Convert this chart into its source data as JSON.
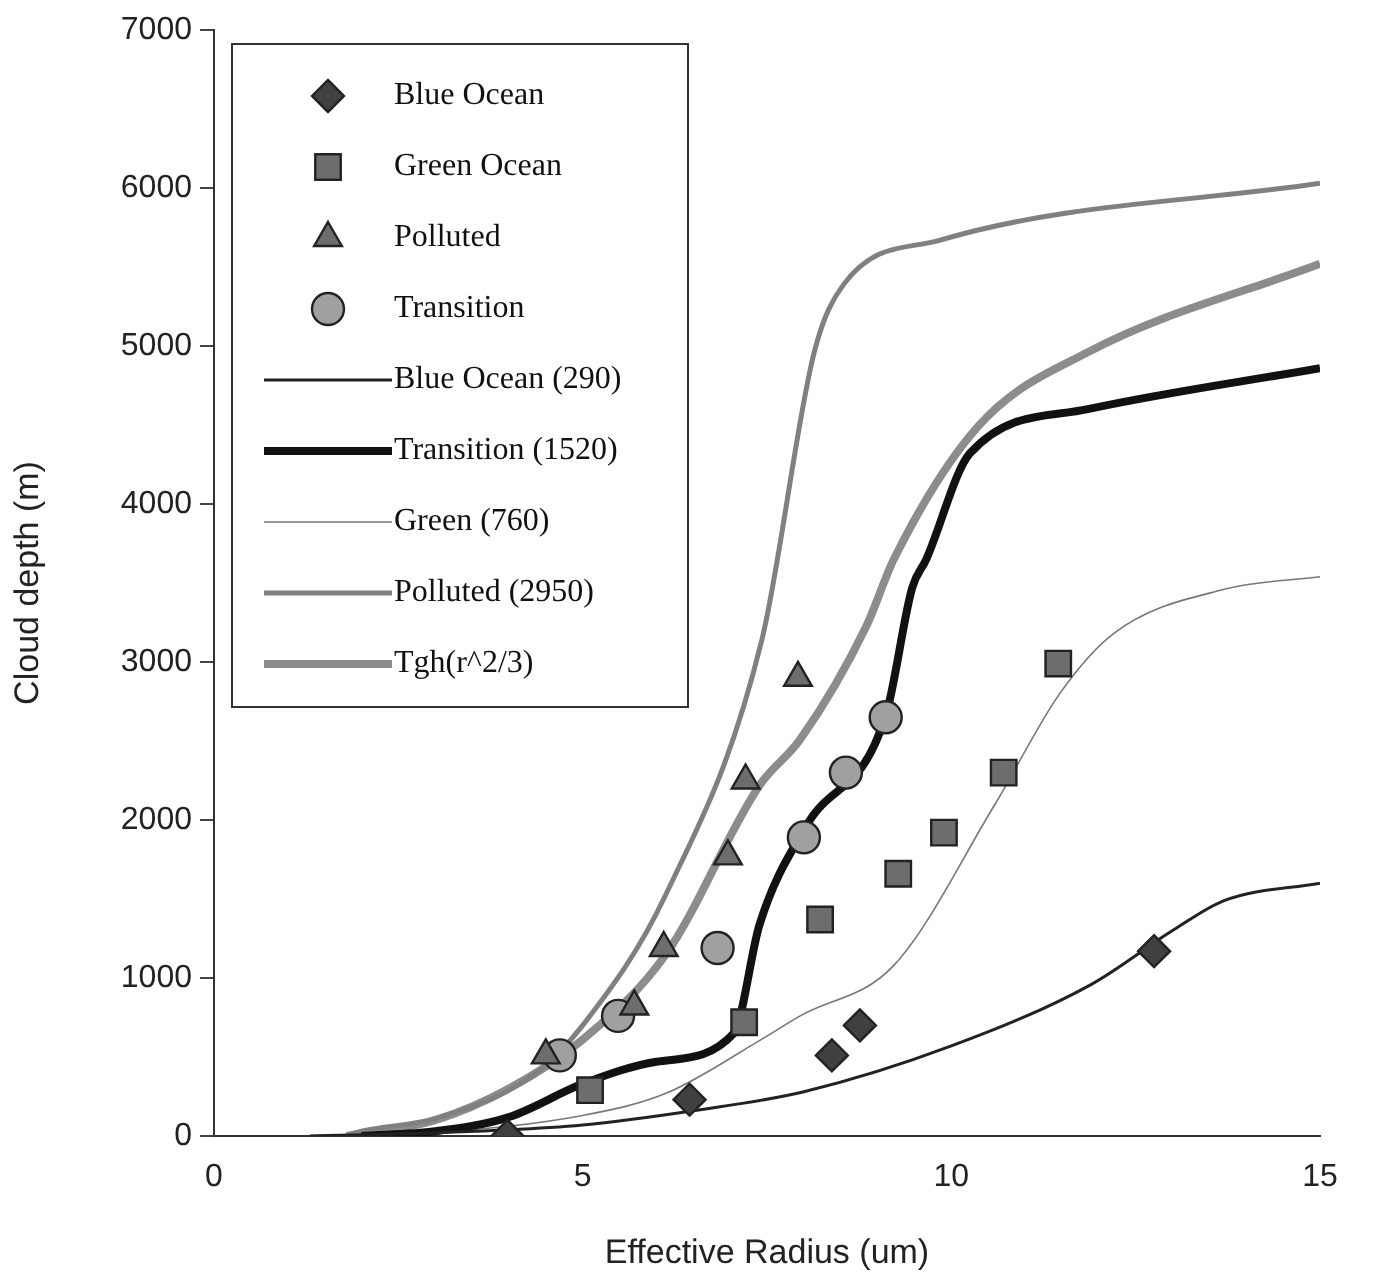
{
  "chart_data": {
    "type": "scatter",
    "xlabel": "Effective Radius (um)",
    "ylabel": "Cloud depth (m)",
    "xlim": [
      0,
      15
    ],
    "xticks": [
      0,
      5,
      10,
      15
    ],
    "ylim": [
      0,
      7000
    ],
    "yticks": [
      0,
      1000,
      2000,
      3000,
      4000,
      5000,
      6000,
      7000
    ],
    "grid": false,
    "legend": "top left",
    "series": [
      {
        "name": "Blue Ocean",
        "marker": "diamond",
        "color": "#404040",
        "x": [
          3.98,
          6.45,
          8.38,
          8.76,
          12.75
        ],
        "values": [
          0,
          230,
          510,
          700,
          1170
        ]
      },
      {
        "name": "Green Ocean",
        "marker": "square",
        "color": "#6d6d6d",
        "x": [
          5.1,
          7.19,
          8.22,
          9.28,
          9.9,
          10.71,
          11.45
        ],
        "values": [
          290,
          720,
          1370,
          1660,
          1920,
          2300,
          2990
        ]
      },
      {
        "name": "Polluted",
        "marker": "triangle",
        "color": "#6d6d6d",
        "x": [
          4.5,
          5.7,
          6.1,
          6.97,
          7.21,
          7.92
        ],
        "values": [
          510,
          820,
          1190,
          1770,
          2250,
          2900
        ]
      },
      {
        "name": "Transition",
        "marker": "circle",
        "color": "#a0a0a0",
        "x": [
          4.69,
          5.48,
          6.83,
          8.0,
          8.57,
          9.11
        ],
        "values": [
          510,
          760,
          1190,
          1890,
          2300,
          2650
        ]
      },
      {
        "name": "Blue Ocean (290)",
        "type": "line",
        "color": "#222222",
        "x": [
          1.3,
          3,
          5,
          6.5,
          8,
          10,
          11.9,
          13,
          13.7,
          15
        ],
        "values": [
          0,
          20,
          70,
          160,
          280,
          570,
          960,
          1300,
          1490,
          1600
        ]
      },
      {
        "name": "Transition (1520)",
        "type": "line",
        "color": "#111111",
        "x": [
          2,
          3,
          4,
          5,
          6,
          7.05,
          7.4,
          8.03,
          9.11,
          9.47,
          9.66,
          10.25,
          11.85,
          15
        ],
        "values": [
          0,
          30,
          120,
          330,
          470,
          650,
          1340,
          1960,
          2660,
          3470,
          3650,
          4320,
          4600,
          4860
        ]
      },
      {
        "name": "Green (760)",
        "type": "line",
        "color": "#777777",
        "x": [
          1.5,
          3,
          5,
          6.13,
          7.42,
          7.95,
          9.22,
          10.58,
          11.47,
          12.2,
          13.7,
          15
        ],
        "values": [
          0,
          20,
          130,
          270,
          610,
          760,
          1080,
          2090,
          2800,
          3180,
          3460,
          3540
        ]
      },
      {
        "name": "Polluted (2950)",
        "type": "line",
        "color": "#808080",
        "x": [
          1.8,
          2,
          3,
          4.34,
          5,
          6.13,
          7.43,
          8.14,
          8.54,
          9.85,
          15
        ],
        "values": [
          0,
          30,
          110,
          390,
          700,
          1530,
          3140,
          4960,
          5390,
          5670,
          6030
        ]
      },
      {
        "name": "Tgh(r^2/3)",
        "type": "line",
        "color": "#8c8c8c",
        "x": [
          1.8,
          3,
          4,
          5,
          6.13,
          7.4,
          7.95,
          8.85,
          9.22,
          10.36,
          11.85,
          15
        ],
        "values": [
          0,
          100,
          300,
          610,
          1150,
          2220,
          2510,
          3230,
          3650,
          4490,
          4960,
          5520
        ]
      }
    ]
  }
}
